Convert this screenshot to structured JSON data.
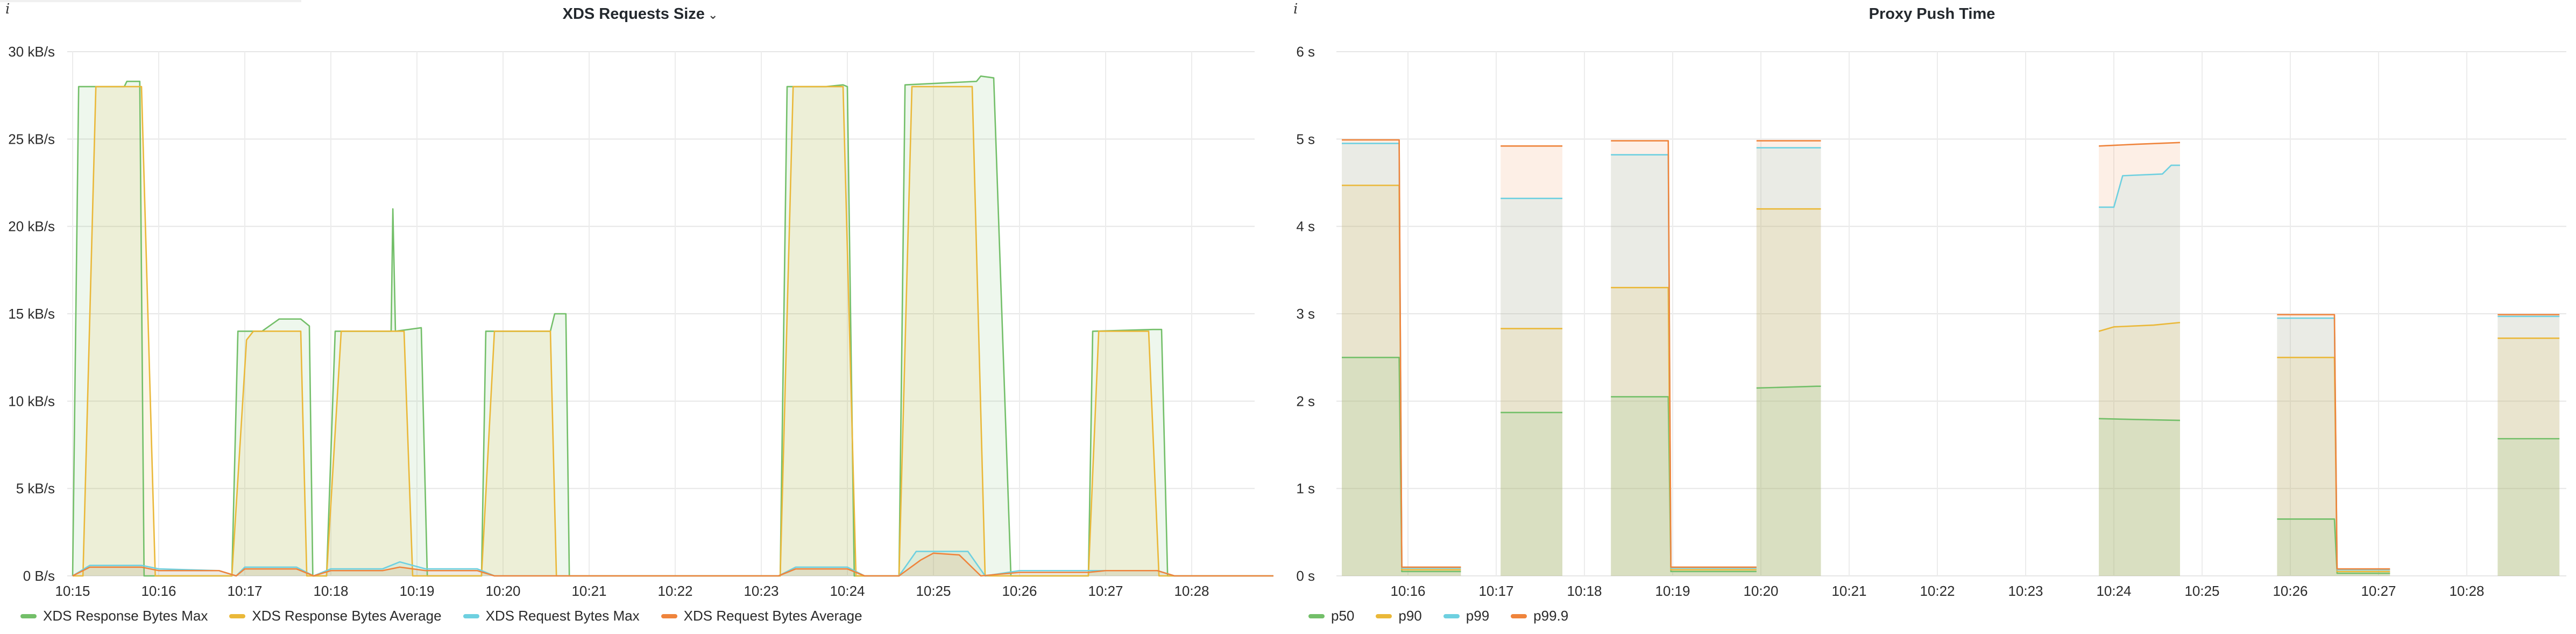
{
  "chart_data": [
    {
      "type": "area",
      "title": "XDS Requests Size",
      "xlabel": "",
      "ylabel": "",
      "ylim": [
        0,
        30
      ],
      "y_ticks": [
        "0 B/s",
        "5 kB/s",
        "10 kB/s",
        "15 kB/s",
        "20 kB/s",
        "25 kB/s",
        "30 kB/s"
      ],
      "x_ticks": [
        "10:15",
        "10:16",
        "10:17",
        "10:18",
        "10:19",
        "10:20",
        "10:21",
        "10:22",
        "10:23",
        "10:24",
        "10:25",
        "10:26",
        "10:27",
        "10:28"
      ],
      "grid": true,
      "legend_position": "bottom-left",
      "series": [
        {
          "name": "XDS Response Bytes Max",
          "color": "#73bf69",
          "points": [
            [
              0,
              0
            ],
            [
              0.07,
              28
            ],
            [
              0.6,
              28
            ],
            [
              0.63,
              28.3
            ],
            [
              0.78,
              28.3
            ],
            [
              0.83,
              0
            ],
            [
              1.85,
              0
            ],
            [
              1.92,
              14
            ],
            [
              2.2,
              14
            ],
            [
              2.4,
              14.7
            ],
            [
              2.65,
              14.7
            ],
            [
              2.75,
              14.3
            ],
            [
              2.79,
              0
            ],
            [
              2.95,
              0
            ],
            [
              3.05,
              14
            ],
            [
              3.7,
              14
            ],
            [
              3.72,
              21
            ],
            [
              3.75,
              14
            ],
            [
              4.05,
              14.2
            ],
            [
              4.12,
              0
            ],
            [
              4.75,
              0
            ],
            [
              4.8,
              14
            ],
            [
              5.55,
              14
            ],
            [
              5.6,
              15
            ],
            [
              5.73,
              15
            ],
            [
              5.77,
              0
            ],
            [
              8.22,
              0
            ],
            [
              8.3,
              28
            ],
            [
              8.75,
              28
            ],
            [
              8.95,
              28.1
            ],
            [
              9.0,
              28
            ],
            [
              9.08,
              0
            ],
            [
              9.6,
              0
            ],
            [
              9.67,
              28.1
            ],
            [
              10.5,
              28.3
            ],
            [
              10.55,
              28.6
            ],
            [
              10.7,
              28.5
            ],
            [
              10.9,
              0
            ],
            [
              11.8,
              0
            ],
            [
              11.85,
              14
            ],
            [
              12.55,
              14.1
            ],
            [
              12.65,
              14.1
            ],
            [
              12.72,
              0
            ],
            [
              13.95,
              0
            ]
          ]
        },
        {
          "name": "XDS Response Bytes Average",
          "color": "#eab839",
          "points": [
            [
              0,
              0
            ],
            [
              0.12,
              0
            ],
            [
              0.27,
              28
            ],
            [
              0.8,
              28
            ],
            [
              0.96,
              0
            ],
            [
              1.85,
              0
            ],
            [
              2.02,
              13.5
            ],
            [
              2.1,
              14
            ],
            [
              2.65,
              14
            ],
            [
              2.72,
              0
            ],
            [
              2.95,
              0
            ],
            [
              3.12,
              14
            ],
            [
              3.85,
              14
            ],
            [
              3.95,
              0
            ],
            [
              4.75,
              0
            ],
            [
              4.9,
              14
            ],
            [
              5.55,
              14
            ],
            [
              5.62,
              0
            ],
            [
              8.22,
              0
            ],
            [
              8.37,
              28
            ],
            [
              8.95,
              28
            ],
            [
              9.1,
              0
            ],
            [
              9.6,
              0
            ],
            [
              9.75,
              28
            ],
            [
              10.45,
              28
            ],
            [
              10.6,
              0
            ],
            [
              11.8,
              0
            ],
            [
              11.92,
              14
            ],
            [
              12.5,
              14
            ],
            [
              12.62,
              0
            ],
            [
              13.95,
              0
            ]
          ]
        },
        {
          "name": "XDS Request Bytes Max",
          "color": "#6ed0e0",
          "points": [
            [
              0,
              0
            ],
            [
              0.2,
              0.6
            ],
            [
              0.8,
              0.6
            ],
            [
              1.0,
              0.4
            ],
            [
              1.7,
              0.3
            ],
            [
              1.9,
              0
            ],
            [
              2.0,
              0.5
            ],
            [
              2.6,
              0.5
            ],
            [
              2.8,
              0
            ],
            [
              3.0,
              0.4
            ],
            [
              3.6,
              0.4
            ],
            [
              3.8,
              0.8
            ],
            [
              4.1,
              0.4
            ],
            [
              4.7,
              0.4
            ],
            [
              4.9,
              0
            ],
            [
              5.6,
              0
            ],
            [
              6.0,
              0
            ],
            [
              8.2,
              0
            ],
            [
              8.4,
              0.5
            ],
            [
              9.0,
              0.5
            ],
            [
              9.2,
              0
            ],
            [
              9.6,
              0
            ],
            [
              9.8,
              1.4
            ],
            [
              10.4,
              1.4
            ],
            [
              10.6,
              0
            ],
            [
              11.0,
              0.3
            ],
            [
              11.8,
              0.3
            ],
            [
              12.0,
              0.3
            ],
            [
              12.6,
              0.3
            ],
            [
              12.8,
              0
            ],
            [
              13.95,
              0
            ]
          ]
        },
        {
          "name": "XDS Request Bytes Average",
          "color": "#ef843c",
          "points": [
            [
              0,
              0
            ],
            [
              0.2,
              0.5
            ],
            [
              0.8,
              0.5
            ],
            [
              1.0,
              0.3
            ],
            [
              1.7,
              0.3
            ],
            [
              1.9,
              0
            ],
            [
              2.0,
              0.4
            ],
            [
              2.6,
              0.4
            ],
            [
              2.8,
              0
            ],
            [
              3.0,
              0.3
            ],
            [
              3.6,
              0.3
            ],
            [
              3.8,
              0.5
            ],
            [
              4.1,
              0.3
            ],
            [
              4.7,
              0.3
            ],
            [
              4.9,
              0
            ],
            [
              5.6,
              0
            ],
            [
              8.2,
              0
            ],
            [
              8.4,
              0.4
            ],
            [
              9.0,
              0.4
            ],
            [
              9.2,
              0
            ],
            [
              9.6,
              0
            ],
            [
              9.85,
              0.9
            ],
            [
              10.0,
              1.3
            ],
            [
              10.3,
              1.2
            ],
            [
              10.55,
              0
            ],
            [
              11.0,
              0.2
            ],
            [
              11.8,
              0.2
            ],
            [
              12.0,
              0.3
            ],
            [
              12.6,
              0.3
            ],
            [
              12.8,
              0
            ],
            [
              13.95,
              0
            ]
          ]
        }
      ]
    },
    {
      "type": "area",
      "title": "Proxy Push Time",
      "xlabel": "",
      "ylabel": "",
      "ylim": [
        0,
        6
      ],
      "y_ticks": [
        "0 s",
        "1 s",
        "2 s",
        "3 s",
        "4 s",
        "5 s",
        "6 s"
      ],
      "x_ticks": [
        "10:16",
        "10:17",
        "10:18",
        "10:19",
        "10:20",
        "10:21",
        "10:22",
        "10:23",
        "10:24",
        "10:25",
        "10:26",
        "10:27",
        "10:28"
      ],
      "grid": true,
      "legend_position": "bottom-left",
      "series": [
        {
          "name": "p50",
          "color": "#73bf69",
          "segments": [
            [
              [
                0,
                2.5
              ],
              [
                0.65,
                2.5
              ],
              [
                0.68,
                0.05
              ],
              [
                1.35,
                0.05
              ]
            ],
            [
              [
                1.8,
                1.87
              ],
              [
                2.5,
                1.87
              ]
            ],
            [
              [
                3.05,
                2.05
              ],
              [
                3.7,
                2.05
              ],
              [
                3.73,
                0.05
              ],
              [
                4.7,
                0.05
              ]
            ],
            [
              [
                4.7,
                2.15
              ],
              [
                5.38,
                2.17
              ],
              [
                5.43,
                2.17
              ]
            ],
            [
              [
                8.58,
                1.8
              ],
              [
                9.0,
                1.79
              ],
              [
                9.5,
                1.78
              ]
            ],
            [
              [
                10.6,
                0.65
              ],
              [
                11.25,
                0.65
              ],
              [
                11.28,
                0.03
              ],
              [
                11.88,
                0.03
              ]
            ],
            [
              [
                13.1,
                1.57
              ],
              [
                13.8,
                1.57
              ]
            ]
          ]
        },
        {
          "name": "p90",
          "color": "#eab839",
          "segments": [
            [
              [
                0,
                4.47
              ],
              [
                0.65,
                4.47
              ],
              [
                0.68,
                0.07
              ],
              [
                1.35,
                0.07
              ]
            ],
            [
              [
                1.8,
                2.83
              ],
              [
                2.5,
                2.83
              ]
            ],
            [
              [
                3.05,
                3.3
              ],
              [
                3.7,
                3.3
              ],
              [
                3.73,
                0.07
              ],
              [
                4.7,
                0.07
              ]
            ],
            [
              [
                4.7,
                4.2
              ],
              [
                5.43,
                4.2
              ]
            ],
            [
              [
                8.58,
                2.8
              ],
              [
                8.75,
                2.85
              ],
              [
                9.2,
                2.87
              ],
              [
                9.5,
                2.9
              ]
            ],
            [
              [
                10.6,
                2.5
              ],
              [
                11.25,
                2.5
              ],
              [
                11.28,
                0.05
              ],
              [
                11.88,
                0.05
              ]
            ],
            [
              [
                13.1,
                2.72
              ],
              [
                13.8,
                2.72
              ]
            ]
          ]
        },
        {
          "name": "p99",
          "color": "#6ed0e0",
          "segments": [
            [
              [
                0,
                4.95
              ],
              [
                0.65,
                4.95
              ],
              [
                0.68,
                0.09
              ],
              [
                1.35,
                0.09
              ]
            ],
            [
              [
                1.8,
                4.32
              ],
              [
                2.5,
                4.32
              ]
            ],
            [
              [
                3.05,
                4.82
              ],
              [
                3.7,
                4.82
              ],
              [
                3.73,
                0.09
              ],
              [
                4.7,
                0.09
              ]
            ],
            [
              [
                4.7,
                4.9
              ],
              [
                5.43,
                4.9
              ]
            ],
            [
              [
                8.58,
                4.22
              ],
              [
                8.75,
                4.22
              ],
              [
                8.85,
                4.58
              ],
              [
                9.3,
                4.6
              ],
              [
                9.4,
                4.7
              ],
              [
                9.5,
                4.7
              ]
            ],
            [
              [
                10.6,
                2.95
              ],
              [
                11.25,
                2.95
              ],
              [
                11.28,
                0.07
              ],
              [
                11.88,
                0.07
              ]
            ],
            [
              [
                13.1,
                2.97
              ],
              [
                13.8,
                2.97
              ]
            ]
          ]
        },
        {
          "name": "p99.9",
          "color": "#ef843c",
          "segments": [
            [
              [
                0,
                4.99
              ],
              [
                0.65,
                4.99
              ],
              [
                0.68,
                0.1
              ],
              [
                1.35,
                0.1
              ]
            ],
            [
              [
                1.8,
                4.92
              ],
              [
                2.5,
                4.92
              ]
            ],
            [
              [
                3.05,
                4.98
              ],
              [
                3.7,
                4.98
              ],
              [
                3.73,
                0.1
              ],
              [
                4.7,
                0.1
              ]
            ],
            [
              [
                4.7,
                4.98
              ],
              [
                5.43,
                4.98
              ]
            ],
            [
              [
                8.58,
                4.92
              ],
              [
                9.0,
                4.94
              ],
              [
                9.5,
                4.96
              ]
            ],
            [
              [
                10.6,
                2.99
              ],
              [
                11.25,
                2.99
              ],
              [
                11.28,
                0.08
              ],
              [
                11.88,
                0.08
              ]
            ],
            [
              [
                13.1,
                2.99
              ],
              [
                13.8,
                2.99
              ]
            ]
          ]
        }
      ]
    }
  ],
  "ui": {
    "left_info_icon": "info-icon",
    "right_info_icon": "info-icon",
    "title_menu_icon": "chevron-down-icon",
    "chevron_glyph": "⌄",
    "info_glyph": "i"
  }
}
